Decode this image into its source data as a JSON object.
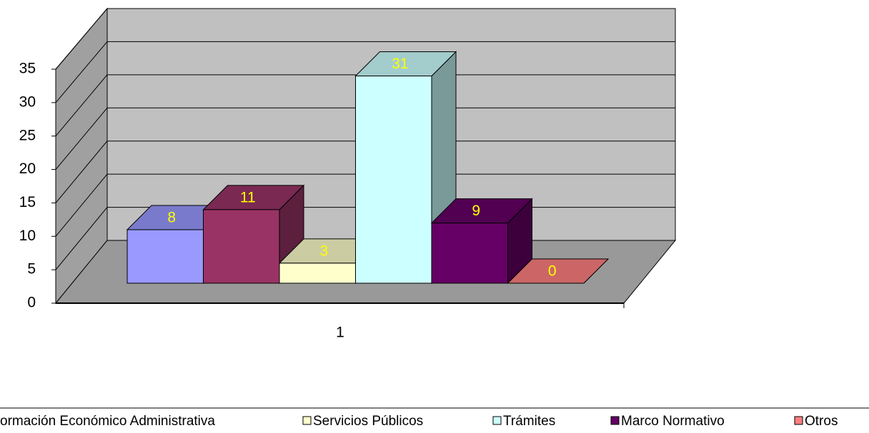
{
  "chart_data": {
    "type": "bar3d",
    "categories": [
      "1"
    ],
    "series": [
      {
        "name": null,
        "color": "#9999FF",
        "values": [
          8
        ]
      },
      {
        "name": "ormación Económico Administrativa",
        "color": "#993366",
        "values": [
          11
        ]
      },
      {
        "name": "Servicios Públicos",
        "color": "#FFFFCC",
        "values": [
          3
        ]
      },
      {
        "name": "Trámites",
        "color": "#CCFFFF",
        "values": [
          31
        ]
      },
      {
        "name": "Marco Normativo",
        "color": "#660066",
        "values": [
          9
        ]
      },
      {
        "name": "Otros",
        "color": "#FF8080",
        "values": [
          0
        ]
      }
    ],
    "ylim": [
      0,
      35
    ],
    "yticks": [
      0,
      5,
      10,
      15,
      20,
      25,
      30,
      35
    ],
    "grid": true,
    "legend": "bottom"
  }
}
